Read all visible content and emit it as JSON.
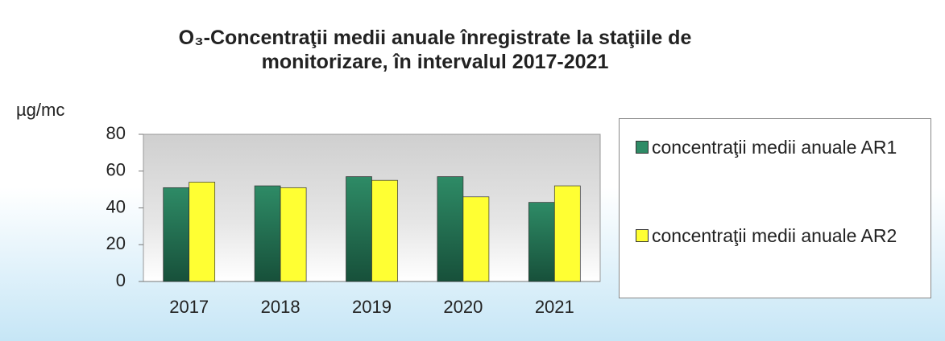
{
  "chart_data": {
    "type": "bar",
    "title": "O₃-Concentraţii medii anuale înregistrate la staţiile de monitorizare, în intervalul 2017-2021",
    "y_label": "µg/mc",
    "categories": [
      "2017",
      "2018",
      "2019",
      "2020",
      "2021"
    ],
    "series": [
      {
        "name": "concentraţii medii anuale AR1",
        "color": "#2e8b66",
        "values": [
          51,
          52,
          57,
          57,
          43
        ]
      },
      {
        "name": "concentraţii medii anuale AR2",
        "color": "#ffff33",
        "values": [
          54,
          51,
          55,
          46,
          52
        ]
      }
    ],
    "ylim": [
      0,
      80
    ],
    "yticks": [
      0,
      20,
      40,
      60,
      80
    ],
    "legend": "right"
  }
}
